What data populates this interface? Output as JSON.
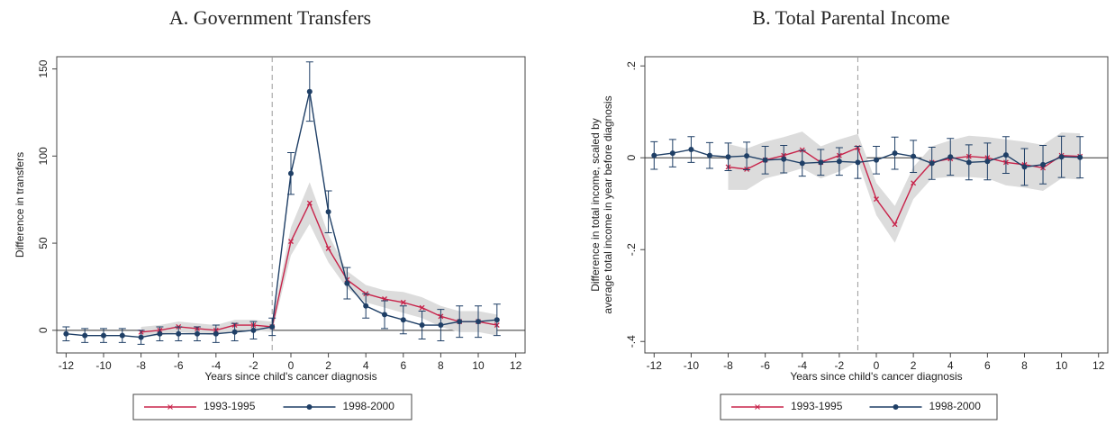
{
  "chart_data": [
    {
      "type": "line",
      "title": "A. Government Transfers",
      "xlabel": "Years since child's cancer diagnosis",
      "ylabel": [
        "Difference in transfers"
      ],
      "xlim": [
        -12.5,
        12.5
      ],
      "xticks": [
        -12,
        -10,
        -8,
        -6,
        -4,
        -2,
        0,
        2,
        4,
        6,
        8,
        10,
        12
      ],
      "ylim": [
        -13,
        157
      ],
      "yticks": [
        0,
        50,
        100,
        150
      ],
      "vline": -1,
      "hline": 0,
      "legend": "bottom",
      "series": [
        {
          "name": "1993-1995",
          "color": "#c8234a",
          "marker": "x",
          "error_style": "band",
          "x": [
            -8,
            -7,
            -6,
            -5,
            -4,
            -3,
            -2,
            -1,
            0,
            1,
            2,
            3,
            4,
            5,
            6,
            7,
            8,
            9,
            10,
            11
          ],
          "values": [
            -1,
            0,
            2,
            1,
            0,
            3,
            3,
            2,
            51,
            73,
            47,
            29,
            21,
            18,
            16,
            13,
            8,
            5,
            5,
            3
          ],
          "errors": [
            3,
            3,
            3,
            3,
            3,
            3,
            3,
            3,
            8,
            12,
            8,
            5,
            5,
            5,
            6,
            6,
            6,
            6,
            6,
            6
          ]
        },
        {
          "name": "1998-2000",
          "color": "#1f3f66",
          "marker": "circle",
          "error_style": "bars",
          "x": [
            -12,
            -11,
            -10,
            -9,
            -8,
            -7,
            -6,
            -5,
            -4,
            -3,
            -2,
            -1,
            0,
            1,
            2,
            3,
            4,
            5,
            6,
            7,
            8,
            9,
            10,
            11
          ],
          "values": [
            -2,
            -3,
            -3,
            -3,
            -4,
            -2,
            -2,
            -2,
            -2,
            -1,
            0,
            2,
            90,
            137,
            68,
            27,
            14,
            9,
            6,
            3,
            3,
            5,
            5,
            6
          ],
          "errors": [
            4,
            4,
            4,
            4,
            4,
            4,
            4,
            4,
            5,
            5,
            5,
            5,
            12,
            17,
            12,
            9,
            7,
            8,
            8,
            8,
            9,
            9,
            9,
            9
          ]
        }
      ]
    },
    {
      "type": "line",
      "title": "B. Total Parental Income",
      "xlabel": "Years since child's cancer diagnosis",
      "ylabel": [
        "Difference in total income, scaled by",
        "average total income in year before diagnosis"
      ],
      "xlim": [
        -12.5,
        12.5
      ],
      "xticks": [
        -12,
        -10,
        -8,
        -6,
        -4,
        -2,
        0,
        2,
        4,
        6,
        8,
        10,
        12
      ],
      "ylim": [
        -0.425,
        0.22
      ],
      "yticks": [
        {
          "value": -0.4,
          "label": "-.4"
        },
        {
          "value": -0.2,
          "label": "-.2"
        },
        0,
        {
          "value": 0.2,
          "label": ".2"
        }
      ],
      "vline": -1,
      "hline": 0,
      "legend": "bottom",
      "series": [
        {
          "name": "1993-1995",
          "color": "#c8234a",
          "marker": "x",
          "error_style": "band",
          "x": [
            -8,
            -7,
            -6,
            -5,
            -4,
            -3,
            -2,
            -1,
            0,
            1,
            2,
            3,
            4,
            5,
            6,
            7,
            8,
            9,
            10,
            11
          ],
          "values": [
            -0.02,
            -0.025,
            -0.005,
            0.005,
            0.017,
            -0.01,
            0.005,
            0.022,
            -0.09,
            -0.145,
            -0.055,
            -0.01,
            -0.002,
            0.003,
            0,
            -0.01,
            -0.015,
            -0.022,
            0.005,
            0.003
          ],
          "errors": [
            0.05,
            0.045,
            0.04,
            0.04,
            0.04,
            0.035,
            0.035,
            0.03,
            0.035,
            0.04,
            0.035,
            0.035,
            0.04,
            0.045,
            0.045,
            0.05,
            0.05,
            0.05,
            0.05,
            0.05
          ]
        },
        {
          "name": "1998-2000",
          "color": "#1f3f66",
          "marker": "circle",
          "error_style": "bars",
          "x": [
            -12,
            -11,
            -10,
            -9,
            -8,
            -7,
            -6,
            -5,
            -4,
            -3,
            -2,
            -1,
            0,
            1,
            2,
            3,
            4,
            5,
            6,
            7,
            8,
            9,
            10,
            11
          ],
          "values": [
            0.005,
            0.01,
            0.018,
            0.005,
            0.002,
            0.004,
            -0.005,
            -0.003,
            -0.012,
            -0.01,
            -0.008,
            -0.01,
            -0.005,
            0.01,
            0.003,
            -0.012,
            0.002,
            -0.01,
            -0.008,
            0.006,
            -0.02,
            -0.015,
            0.002,
            0.001
          ],
          "errors": [
            0.03,
            0.03,
            0.028,
            0.028,
            0.03,
            0.03,
            0.03,
            0.03,
            0.028,
            0.028,
            0.03,
            0.035,
            0.03,
            0.035,
            0.035,
            0.035,
            0.04,
            0.038,
            0.04,
            0.04,
            0.04,
            0.042,
            0.045,
            0.045
          ]
        }
      ]
    }
  ]
}
